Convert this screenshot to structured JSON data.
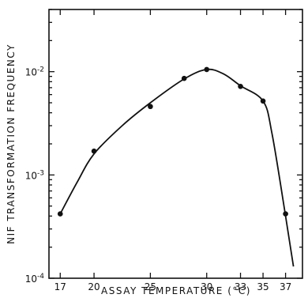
{
  "chart_data": {
    "type": "scatter",
    "xlabel": "ASSAY TEMPERATURE (°C)",
    "ylabel": "NIF TRANSFORMATION FREQUENCY",
    "x_ticks": [
      17,
      20,
      25,
      30,
      33,
      35,
      37
    ],
    "x_tick_labels": [
      "17",
      "20",
      "25",
      "30",
      "33",
      "35",
      "37"
    ],
    "xlim": [
      16,
      38.5
    ],
    "y_scale": "log",
    "ylim": [
      0.0001,
      0.04
    ],
    "y_major_ticks": [
      {
        "value": 0.0001,
        "base": "10",
        "exp": "-4"
      },
      {
        "value": 0.001,
        "base": "10",
        "exp": "-3"
      },
      {
        "value": 0.01,
        "base": "10",
        "exp": "-2"
      }
    ],
    "points": [
      {
        "x": 17,
        "y": 0.00042
      },
      {
        "x": 20,
        "y": 0.0017
      },
      {
        "x": 25,
        "y": 0.0046
      },
      {
        "x": 28,
        "y": 0.0086
      },
      {
        "x": 30,
        "y": 0.0105
      },
      {
        "x": 33,
        "y": 0.0072
      },
      {
        "x": 35,
        "y": 0.0052
      },
      {
        "x": 37,
        "y": 0.00042
      }
    ],
    "curve": [
      {
        "x": 17,
        "y": 0.00042
      },
      {
        "x": 18.5,
        "y": 0.00085
      },
      {
        "x": 20,
        "y": 0.0016
      },
      {
        "x": 22.5,
        "y": 0.003
      },
      {
        "x": 25,
        "y": 0.005
      },
      {
        "x": 28,
        "y": 0.0085
      },
      {
        "x": 30,
        "y": 0.0105
      },
      {
        "x": 31.5,
        "y": 0.0095
      },
      {
        "x": 33,
        "y": 0.0073
      },
      {
        "x": 35,
        "y": 0.0052
      },
      {
        "x": 35.8,
        "y": 0.0025
      },
      {
        "x": 37,
        "y": 0.0004
      },
      {
        "x": 37.7,
        "y": 0.00013
      }
    ],
    "grid": false
  }
}
